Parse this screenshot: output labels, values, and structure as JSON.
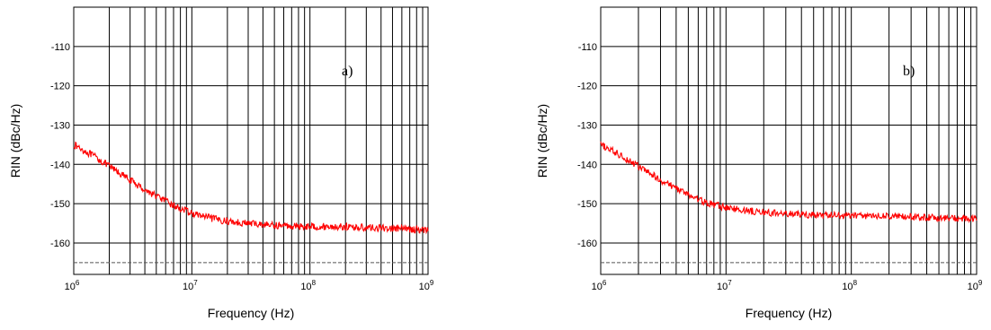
{
  "chart_data": [
    {
      "type": "line",
      "panel_label": "a)",
      "xlabel": "Frequency (Hz)",
      "ylabel": "RIN (dBc/Hz)",
      "x_scale": "log",
      "xlim": [
        1000000,
        1000000000
      ],
      "ylim": [
        -168,
        -100
      ],
      "x_tick_labels": [
        {
          "base": "10",
          "exp": "6",
          "value": 1000000
        },
        {
          "base": "10",
          "exp": "7",
          "value": 10000000
        },
        {
          "base": "10",
          "exp": "8",
          "value": 100000000
        },
        {
          "base": "10",
          "exp": "9",
          "value": 1000000000
        }
      ],
      "y_ticks": [
        -110,
        -120,
        -130,
        -140,
        -150,
        -160
      ],
      "y_tick_labels": [
        "-110",
        "-120",
        "-130",
        "-140",
        "-150",
        "-160"
      ],
      "grid": true,
      "series": [
        {
          "color": "#ff0000",
          "style": "solid",
          "x": [
            1000000,
            1500000,
            2000000,
            3000000,
            4000000,
            5000000,
            7000000,
            10000000,
            15000000,
            20000000,
            30000000,
            50000000,
            70000000,
            100000000,
            200000000,
            300000000,
            500000000,
            700000000,
            1000000000
          ],
          "y": [
            -135,
            -138,
            -140.5,
            -144,
            -146.5,
            -148,
            -150.5,
            -152.5,
            -153.8,
            -154.5,
            -155,
            -155.5,
            -155.7,
            -155.8,
            -155.9,
            -156.1,
            -156.3,
            -156.5,
            -156.7
          ]
        },
        {
          "color": "#555555",
          "style": "dashed",
          "x": [
            1000000,
            1000000000
          ],
          "y": [
            -165,
            -165
          ]
        }
      ]
    },
    {
      "type": "line",
      "panel_label": "b)",
      "xlabel": "Frequency (Hz)",
      "ylabel": "RIN (dBc/Hz)",
      "x_scale": "log",
      "xlim": [
        1000000,
        1000000000
      ],
      "ylim": [
        -168,
        -100
      ],
      "x_tick_labels": [
        {
          "base": "10",
          "exp": "6",
          "value": 1000000
        },
        {
          "base": "10",
          "exp": "7",
          "value": 10000000
        },
        {
          "base": "10",
          "exp": "8",
          "value": 100000000
        },
        {
          "base": "10",
          "exp": "9",
          "value": 1000000000
        }
      ],
      "y_ticks": [
        -110,
        -120,
        -130,
        -140,
        -150,
        -160
      ],
      "y_tick_labels": [
        "-110",
        "-120",
        "-130",
        "-140",
        "-150",
        "-160"
      ],
      "grid": true,
      "series": [
        {
          "color": "#ff0000",
          "style": "solid",
          "x": [
            1000000,
            1500000,
            2000000,
            3000000,
            4000000,
            5000000,
            7000000,
            10000000,
            15000000,
            20000000,
            30000000,
            50000000,
            70000000,
            100000000,
            200000000,
            300000000,
            500000000,
            700000000,
            1000000000
          ],
          "y": [
            -135,
            -138,
            -140.5,
            -144,
            -146,
            -147.8,
            -149.8,
            -151,
            -151.8,
            -152.2,
            -152.6,
            -152.9,
            -153,
            -153,
            -153.2,
            -153.4,
            -153.6,
            -153.8,
            -154
          ]
        },
        {
          "color": "#555555",
          "style": "dashed",
          "x": [
            1000000,
            1000000000
          ],
          "y": [
            -165,
            -165
          ]
        }
      ]
    }
  ]
}
